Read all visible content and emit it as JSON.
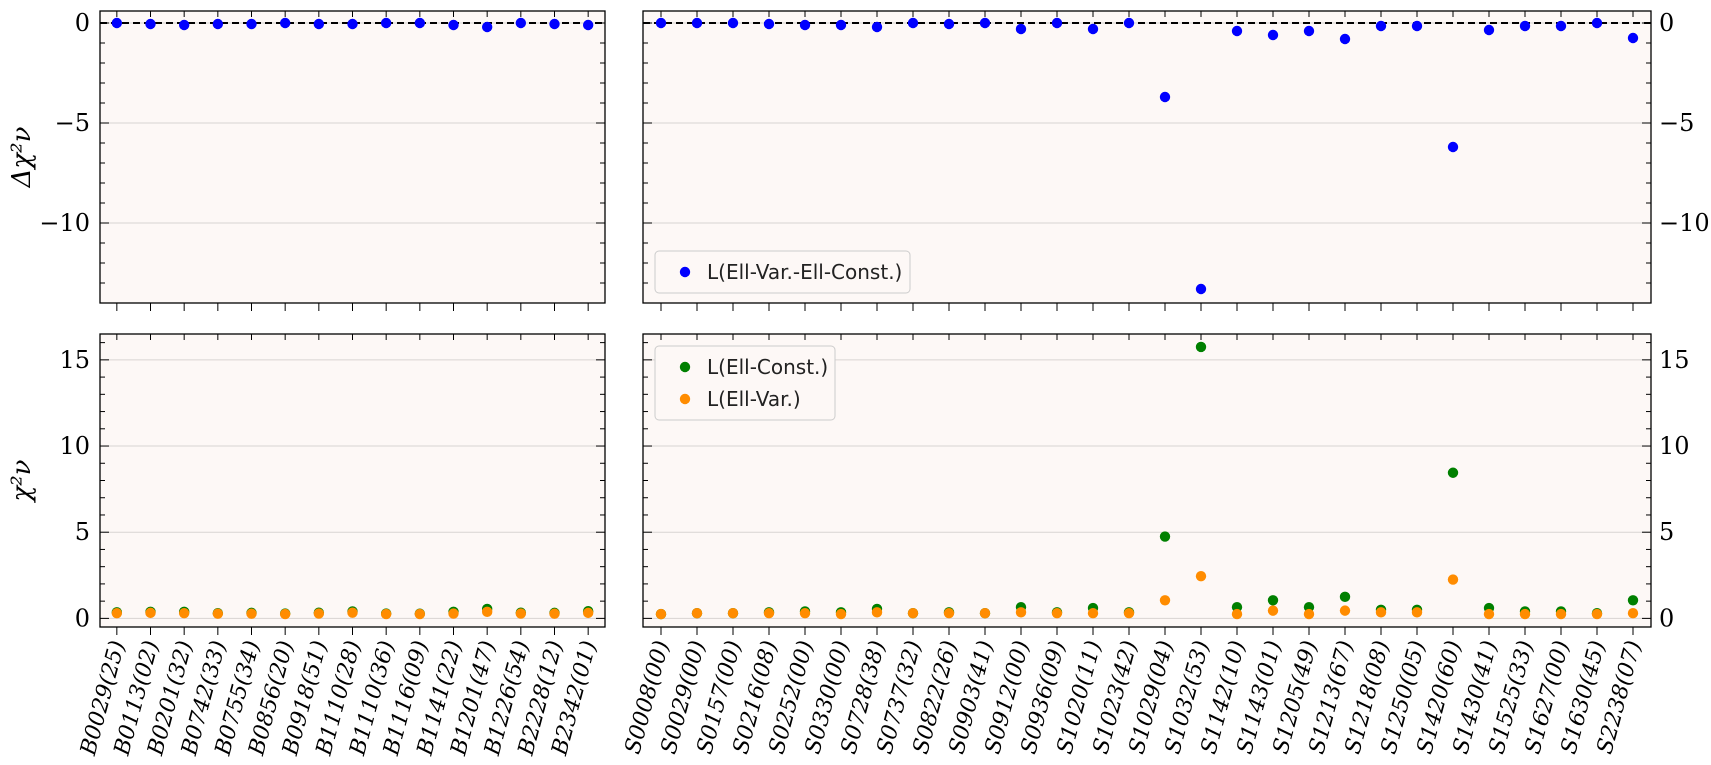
{
  "chart_data": [
    {
      "id": "top_left",
      "type": "scatter",
      "ylabel": "Δχ²ν",
      "ylim": [
        -14,
        0.6
      ],
      "yticks": [
        0,
        -5,
        -10
      ],
      "ytick_labels": [
        "0",
        "−5",
        "−10"
      ],
      "hline": 0,
      "categories": [
        "B0029(25)",
        "B0113(02)",
        "B0201(32)",
        "B0742(33)",
        "B0755(34)",
        "B0856(20)",
        "B0918(51)",
        "B1110(28)",
        "B1110(36)",
        "B1116(09)",
        "B1141(22)",
        "B1201(47)",
        "B1226(54)",
        "B2228(12)",
        "B2342(01)"
      ],
      "series": [
        {
          "color": "#0000ff",
          "values": [
            0.0,
            -0.05,
            -0.1,
            -0.05,
            -0.05,
            0.0,
            -0.05,
            -0.05,
            0.0,
            0.0,
            -0.1,
            -0.2,
            0.0,
            -0.05,
            -0.1
          ]
        }
      ]
    },
    {
      "id": "top_right",
      "type": "scatter",
      "ylim": [
        -14,
        0.6
      ],
      "yticks": [
        0,
        -5,
        -10
      ],
      "ytick_labels": [
        "0",
        "−5",
        "−10"
      ],
      "hline": 0,
      "legend_position": "lower-left",
      "categories": [
        "S0008(00)",
        "S0029(00)",
        "S0157(00)",
        "S0216(08)",
        "S0252(00)",
        "S0330(00)",
        "S0728(38)",
        "S0737(32)",
        "S0822(26)",
        "S0903(41)",
        "S0912(00)",
        "S0936(09)",
        "S1020(11)",
        "S1023(42)",
        "S1029(04)",
        "S1032(53)",
        "S1142(10)",
        "S1143(01)",
        "S1205(49)",
        "S1213(67)",
        "S1218(08)",
        "S1250(05)",
        "S1420(60)",
        "S1430(41)",
        "S1525(33)",
        "S1627(00)",
        "S1630(45)",
        "S2238(07)"
      ],
      "series": [
        {
          "name": "L(Ell-Var.-Ell-Const.)",
          "color": "#0000ff",
          "values": [
            0.0,
            0.0,
            0.0,
            -0.05,
            -0.1,
            -0.1,
            -0.2,
            0.0,
            -0.05,
            0.0,
            -0.3,
            0.0,
            -0.3,
            0.0,
            -3.7,
            -13.3,
            -0.4,
            -0.6,
            -0.4,
            -0.8,
            -0.15,
            -0.15,
            -6.2,
            -0.35,
            -0.15,
            -0.15,
            0.0,
            -0.75
          ]
        }
      ]
    },
    {
      "id": "bottom_left",
      "type": "scatter",
      "ylabel": "χ²ν",
      "ylim": [
        -0.5,
        16.5
      ],
      "yticks": [
        0,
        5,
        10,
        15
      ],
      "ytick_labels": [
        "0",
        "5",
        "10",
        "15"
      ],
      "categories": [
        "B0029(25)",
        "B0113(02)",
        "B0201(32)",
        "B0742(33)",
        "B0755(34)",
        "B0856(20)",
        "B0918(51)",
        "B1110(28)",
        "B1110(36)",
        "B1116(09)",
        "B1141(22)",
        "B1201(47)",
        "B1226(54)",
        "B2228(12)",
        "B2342(01)"
      ],
      "series": [
        {
          "color": "#008000",
          "values": [
            0.35,
            0.38,
            0.38,
            0.3,
            0.32,
            0.28,
            0.33,
            0.4,
            0.28,
            0.27,
            0.38,
            0.55,
            0.33,
            0.32,
            0.42
          ]
        },
        {
          "color": "#ff8c00",
          "values": [
            0.3,
            0.32,
            0.3,
            0.27,
            0.27,
            0.25,
            0.28,
            0.33,
            0.25,
            0.25,
            0.28,
            0.38,
            0.28,
            0.27,
            0.32
          ]
        }
      ]
    },
    {
      "id": "bottom_right",
      "type": "scatter",
      "ylim": [
        -0.5,
        16.5
      ],
      "yticks": [
        0,
        5,
        10,
        15
      ],
      "ytick_labels": [
        "0",
        "5",
        "10",
        "15"
      ],
      "legend_position": "top-left",
      "categories": [
        "S0008(00)",
        "S0029(00)",
        "S0157(00)",
        "S0216(08)",
        "S0252(00)",
        "S0330(00)",
        "S0728(38)",
        "S0737(32)",
        "S0822(26)",
        "S0903(41)",
        "S0912(00)",
        "S0936(09)",
        "S1020(11)",
        "S1023(42)",
        "S1029(04)",
        "S1032(53)",
        "S1142(10)",
        "S1143(01)",
        "S1205(49)",
        "S1213(67)",
        "S1218(08)",
        "S1250(05)",
        "S1420(60)",
        "S1430(41)",
        "S1525(33)",
        "S1627(00)",
        "S1630(45)",
        "S2238(07)"
      ],
      "series": [
        {
          "name": "L(Ell-Const.)",
          "color": "#008000",
          "values": [
            0.25,
            0.3,
            0.3,
            0.35,
            0.4,
            0.35,
            0.55,
            0.3,
            0.35,
            0.3,
            0.65,
            0.35,
            0.6,
            0.35,
            4.75,
            15.75,
            0.65,
            1.05,
            0.65,
            1.25,
            0.5,
            0.5,
            8.45,
            0.6,
            0.4,
            0.4,
            0.3,
            1.05
          ]
        },
        {
          "name": "L(Ell-Var.)",
          "color": "#ff8c00",
          "values": [
            0.25,
            0.3,
            0.3,
            0.3,
            0.3,
            0.25,
            0.35,
            0.3,
            0.3,
            0.3,
            0.35,
            0.3,
            0.3,
            0.3,
            1.05,
            2.45,
            0.25,
            0.45,
            0.25,
            0.45,
            0.35,
            0.35,
            2.25,
            0.25,
            0.25,
            0.25,
            0.25,
            0.3
          ]
        }
      ]
    }
  ]
}
